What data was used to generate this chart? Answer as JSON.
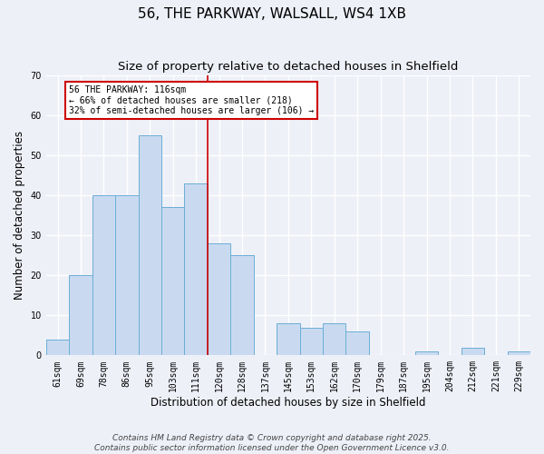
{
  "title": "56, THE PARKWAY, WALSALL, WS4 1XB",
  "subtitle": "Size of property relative to detached houses in Shelfield",
  "xlabel": "Distribution of detached houses by size in Shelfield",
  "ylabel": "Number of detached properties",
  "bar_labels": [
    "61sqm",
    "69sqm",
    "78sqm",
    "86sqm",
    "95sqm",
    "103sqm",
    "111sqm",
    "120sqm",
    "128sqm",
    "137sqm",
    "145sqm",
    "153sqm",
    "162sqm",
    "170sqm",
    "179sqm",
    "187sqm",
    "195sqm",
    "204sqm",
    "212sqm",
    "221sqm",
    "229sqm"
  ],
  "bar_values": [
    4,
    20,
    40,
    40,
    55,
    37,
    43,
    28,
    25,
    0,
    8,
    7,
    8,
    6,
    0,
    0,
    1,
    0,
    2,
    0,
    1
  ],
  "bar_color": "#c9daf0",
  "bar_edge_color": "#6baed6",
  "vline_color": "#cc0000",
  "ylim": [
    0,
    70
  ],
  "yticks": [
    0,
    10,
    20,
    30,
    40,
    50,
    60,
    70
  ],
  "annotation_title": "56 THE PARKWAY: 116sqm",
  "annotation_line1": "← 66% of detached houses are smaller (218)",
  "annotation_line2": "32% of semi-detached houses are larger (106) →",
  "annotation_box_color": "#ffffff",
  "annotation_box_edge": "#cc0000",
  "footer1": "Contains HM Land Registry data © Crown copyright and database right 2025.",
  "footer2": "Contains public sector information licensed under the Open Government Licence v3.0.",
  "bg_color": "#eef0f8",
  "plot_bg_color": "#eef0f8",
  "grid_color": "#ffffff",
  "title_fontsize": 11,
  "subtitle_fontsize": 9.5,
  "axis_label_fontsize": 8.5,
  "tick_fontsize": 7,
  "footer_fontsize": 6.5
}
